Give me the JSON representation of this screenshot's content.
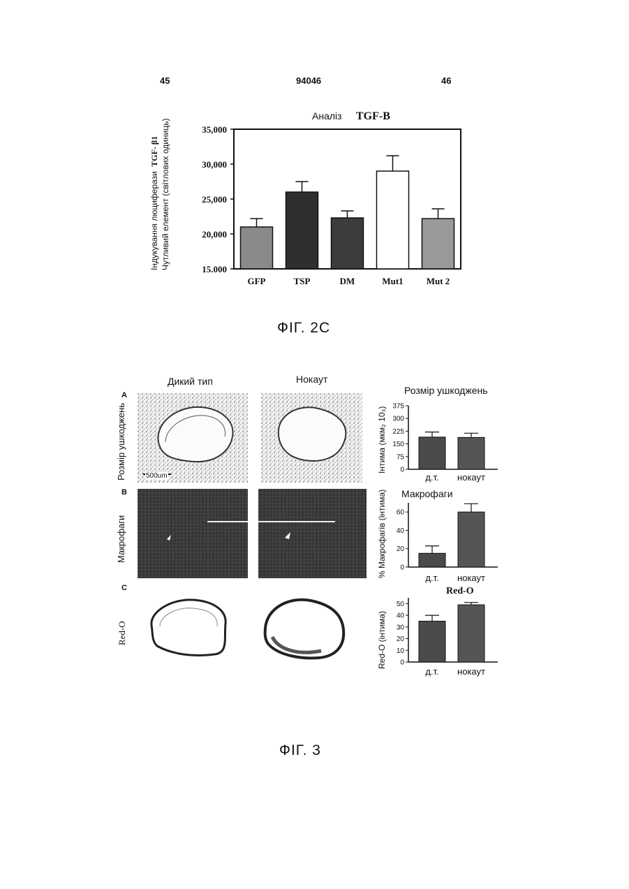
{
  "page": {
    "left_number": "45",
    "center_number": "94046",
    "right_number": "46"
  },
  "fig2c": {
    "caption": "ФІГ. 2С",
    "title_prefix": "Аналіз",
    "title_bold": "TGF-В",
    "ylabel_line1_prefix": "Індукування люциферази",
    "ylabel_line1_bold": "TGF- β1",
    "ylabel_line2": "Чутливий елемент (світлових одиниць)",
    "chart_data": {
      "type": "bar",
      "categories": [
        "GFP",
        "TSP",
        "DM",
        "Mut1",
        "Mut 2"
      ],
      "values": [
        21000,
        26000,
        22300,
        29000,
        22200
      ],
      "errors": [
        1200,
        1500,
        1000,
        2200,
        1400
      ],
      "ylim": [
        15000,
        35000
      ],
      "yticks": [
        15000,
        20000,
        25000,
        30000,
        35000
      ],
      "ytick_labels": [
        "15.000",
        "20,000",
        "25,000",
        "30,000",
        "35,000"
      ],
      "bar_fills": [
        "#8a8a8a",
        "#2f2f2f",
        "#3c3c3c",
        "#ffffff",
        "#9a9a9a"
      ]
    }
  },
  "fig3": {
    "caption": "ФІГ. 3",
    "col_wild": "Дикий тип",
    "col_knockout": "Нокаут",
    "panel_a_letter": "A",
    "panel_a_label": "Розмір ушкоджень",
    "panel_b_letter": "B",
    "panel_b_label": "Макрофаги",
    "panel_c_letter": "C",
    "panel_c_label": "Red-O",
    "scale_bar": "500um",
    "charts": [
      {
        "type": "bar",
        "title": "Розмір ушкоджень",
        "ylabel": "Інтима (мкм₂ 10₃)",
        "categories": [
          "д.т.",
          "нокаут"
        ],
        "values": [
          190,
          188
        ],
        "errors": [
          30,
          25
        ],
        "ylim": [
          0,
          375
        ],
        "yticks": [
          0,
          75,
          150,
          225,
          300,
          375
        ]
      },
      {
        "type": "bar",
        "title": "Макрофаги",
        "ylabel": "% Макрофагів (інтима)",
        "categories": [
          "д.т.",
          "нокаут"
        ],
        "values": [
          15,
          60
        ],
        "errors": [
          8,
          9
        ],
        "ylim": [
          0,
          70
        ],
        "yticks": [
          0,
          20,
          40,
          60
        ]
      },
      {
        "type": "bar",
        "title": "Red-O",
        "ylabel": "Red-O (інтима)",
        "categories": [
          "д.т.",
          "нокаут"
        ],
        "values": [
          35,
          49
        ],
        "errors": [
          5,
          2
        ],
        "ylim": [
          0,
          55
        ],
        "yticks": [
          0,
          10,
          20,
          30,
          40,
          50
        ]
      }
    ]
  }
}
